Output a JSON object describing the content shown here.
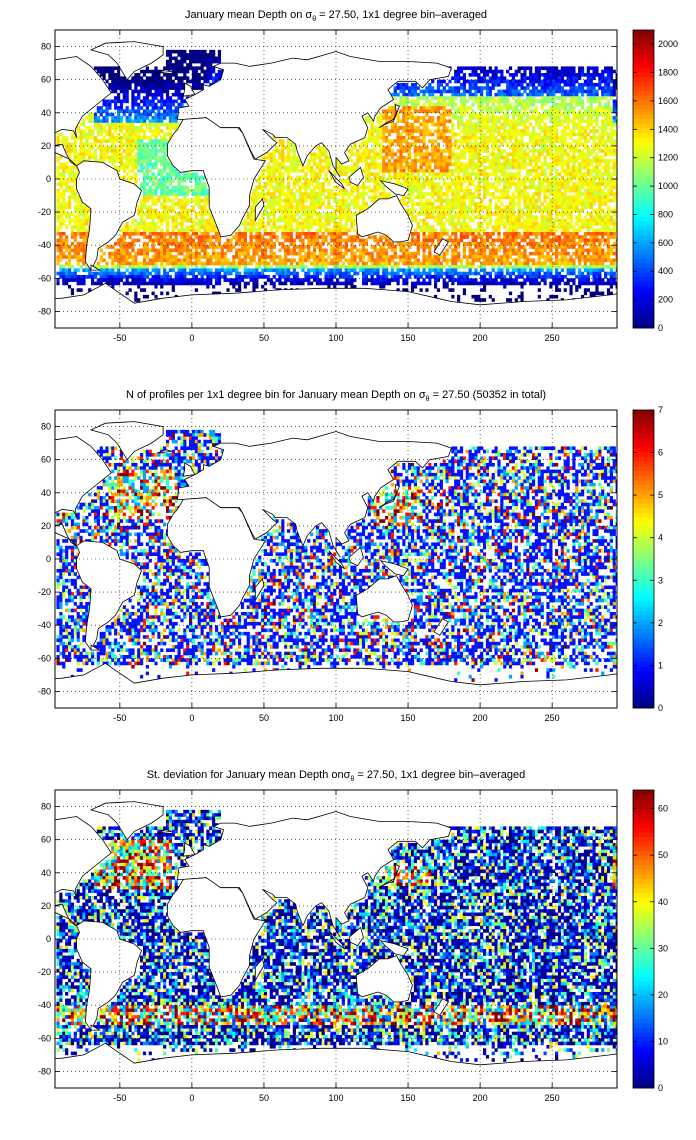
{
  "charts": [
    {
      "title_parts": [
        "January mean Depth on ",
        "σ",
        "θ",
        " = 27.50, 1x1 degree bin–averaged"
      ],
      "colorbar_ticks": [
        "2000",
        "1800",
        "1600",
        "1400",
        "1200",
        "1000",
        "800",
        "600",
        "400",
        "200",
        "0"
      ],
      "colorbar_values": [
        2000,
        1800,
        1600,
        1400,
        1200,
        1000,
        800,
        600,
        400,
        200,
        0
      ],
      "colorbar_max": 2100
    },
    {
      "title_parts": [
        "N of profiles per 1x1 degree bin for January mean Depth on ",
        "σ",
        "θ",
        " = 27.50 (50352 in total)"
      ],
      "colorbar_ticks": [
        "7",
        "6",
        "5",
        "4",
        "3",
        "2",
        "1",
        "0"
      ],
      "colorbar_values": [
        7,
        6,
        5,
        4,
        3,
        2,
        1,
        0
      ],
      "colorbar_max": 7
    },
    {
      "title_parts": [
        "St. deviation for January mean Depth on",
        "σ",
        "θ",
        " = 27.50, 1x1 degree bin–averaged"
      ],
      "colorbar_ticks": [
        "60",
        "50",
        "40",
        "30",
        "20",
        "10",
        "0"
      ],
      "colorbar_values": [
        60,
        50,
        40,
        30,
        20,
        10,
        0
      ],
      "colorbar_max": 64
    }
  ],
  "chart_data": [
    {
      "type": "heatmap",
      "title": "January mean Depth on σθ = 27.50, 1x1 degree bin–averaged",
      "x_ticks": [
        -50,
        0,
        50,
        100,
        150,
        200,
        250
      ],
      "y_ticks": [
        80,
        60,
        40,
        20,
        0,
        -20,
        -40,
        -60,
        -80
      ],
      "xlim": [
        -95,
        295
      ],
      "ylim": [
        -90,
        90
      ],
      "grid": true,
      "colorbar_range": [
        0,
        2100
      ],
      "colormap": "jet"
    },
    {
      "type": "heatmap",
      "title": "N of profiles per 1x1 degree bin for January mean Depth on σθ = 27.50 (50352 in total)",
      "x_ticks": [
        -50,
        0,
        50,
        100,
        150,
        200,
        250
      ],
      "y_ticks": [
        80,
        60,
        40,
        20,
        0,
        -20,
        -40,
        -60,
        -80
      ],
      "xlim": [
        -95,
        295
      ],
      "ylim": [
        -90,
        90
      ],
      "grid": true,
      "colorbar_range": [
        0,
        7
      ],
      "colormap": "jet"
    },
    {
      "type": "heatmap",
      "title": "St. deviation for January mean Depth on σθ = 27.50, 1x1 degree bin–averaged",
      "x_ticks": [
        -50,
        0,
        50,
        100,
        150,
        200,
        250
      ],
      "y_ticks": [
        80,
        60,
        40,
        20,
        0,
        -20,
        -40,
        -60,
        -80
      ],
      "xlim": [
        -95,
        295
      ],
      "ylim": [
        -90,
        90
      ],
      "grid": true,
      "colorbar_range": [
        0,
        64
      ],
      "colormap": "jet"
    }
  ]
}
